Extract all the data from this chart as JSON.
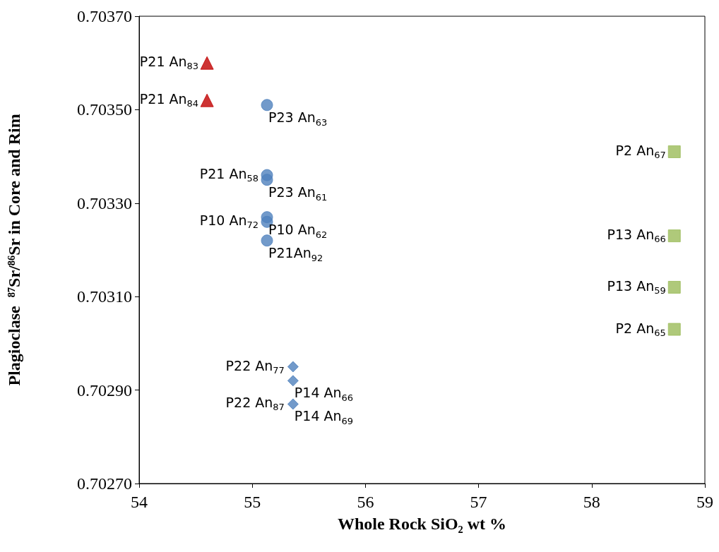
{
  "chart_data": {
    "type": "scatter",
    "xlabel": "Whole Rock SiO₂ wt %",
    "ylabel": "Plagioclase  ⁸⁷Sr/⁸⁶Sr in Core and Rim",
    "xlim": [
      54,
      59
    ],
    "xticks": [
      54,
      55,
      56,
      57,
      58,
      59
    ],
    "ylim": [
      0.7027,
      0.7037
    ],
    "yticks": [
      {
        "value": 0.7027,
        "label": "0.70270"
      },
      {
        "value": 0.7029,
        "label": "0.70290"
      },
      {
        "value": 0.7031,
        "label": "0.70310"
      },
      {
        "value": 0.7033,
        "label": "0.70330"
      },
      {
        "value": 0.7035,
        "label": "0.70350"
      },
      {
        "value": 0.7037,
        "label": "0.70370"
      }
    ],
    "grid": false,
    "series": [
      {
        "marker": "triangle",
        "color": "#c00000",
        "x": [
          54.6
        ],
        "values": [
          0.7036
        ]
      },
      {
        "marker": "triangle",
        "color": "#c00000",
        "x": [
          54.6
        ],
        "values": [
          0.70352
        ]
      },
      {
        "marker": "circle",
        "color": "#4f81bd",
        "x": [
          55.13,
          55.13,
          55.13
        ],
        "values": [
          0.70351,
          0.70327,
          0.70322
        ]
      },
      {
        "marker": "circle",
        "color": "#4f81bd",
        "x": [
          55.13,
          55.13,
          55.13
        ],
        "values": [
          0.70336,
          0.70335,
          0.70326
        ]
      },
      {
        "marker": "diamond",
        "color": "#4f81bd",
        "x": [
          55.36,
          55.36
        ],
        "values": [
          0.70295,
          0.70292
        ]
      },
      {
        "marker": "diamond",
        "color": "#4f81bd",
        "x": [
          55.36
        ],
        "values": [
          0.70287
        ]
      },
      {
        "marker": "square",
        "color": "#9bbb59",
        "x": [
          58.73,
          58.73
        ],
        "values": [
          0.70323,
          0.70303
        ]
      },
      {
        "marker": "square",
        "color": "#9bbb59",
        "x": [
          58.73,
          58.73
        ],
        "values": [
          0.70341,
          0.70312
        ]
      }
    ],
    "annotations": [
      {
        "text": "P21 An$_{83}$",
        "x": 54.6,
        "y": 0.7036
      },
      {
        "text": "P21 An$_{84}$",
        "x": 54.6,
        "y": 0.70352
      },
      {
        "text": "P23 An$_{63}$",
        "x": 55.13,
        "y": 0.70351
      },
      {
        "text": "P23 An$_{61}$",
        "x": 55.13,
        "y": 0.70335
      },
      {
        "text": "P21 An$_{58}$",
        "x": 55.13,
        "y": 0.70336
      },
      {
        "text": "P10 An$_{62}$",
        "x": 55.13,
        "y": 0.70327
      },
      {
        "text": "P10 An$_{72}$",
        "x": 55.13,
        "y": 0.70326
      },
      {
        "text": "P21An$_{92}$",
        "x": 55.13,
        "y": 0.70322
      },
      {
        "text": "P14 An$_{66}$",
        "x": 55.36,
        "y": 0.70292
      },
      {
        "text": "P22 An$_{77}$",
        "x": 55.36,
        "y": 0.70295
      },
      {
        "text": "P14 An$_{69}$",
        "x": 55.36,
        "y": 0.70287
      },
      {
        "text": "P22 An$_{87}$",
        "x": 55.36,
        "y": 0.70287
      },
      {
        "text": "P2 An$_{67}$",
        "x": 58.73,
        "y": 0.70341
      },
      {
        "text": "P13 An$_{66}$",
        "x": 58.73,
        "y": 0.70323
      },
      {
        "text": "P13 An$_{59}$",
        "x": 58.73,
        "y": 0.70312
      },
      {
        "text": "P2 An$_{65}$",
        "x": 58.73,
        "y": 0.70303
      }
    ]
  }
}
